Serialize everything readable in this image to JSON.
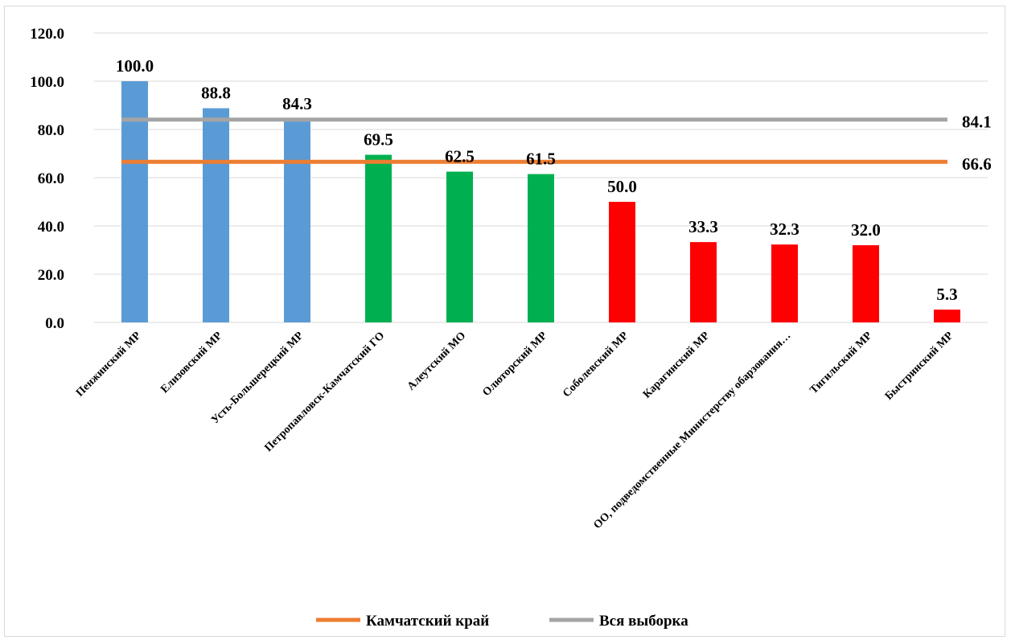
{
  "chart_data": {
    "type": "bar",
    "categories": [
      "Пенжинский МР",
      "Елизовский МР",
      "Усть-Большерецкий МР",
      "Петропавловск-Камчатский ГО",
      "Алеутский МО",
      "Олюторский МР",
      "Соболевский МР",
      "Карагинский МР",
      "ОО, подведомственные Министерству обарзования…",
      "Тигильский МР",
      "Быстринский МР"
    ],
    "values": [
      100.0,
      88.8,
      84.3,
      69.5,
      62.5,
      61.5,
      50.0,
      33.3,
      32.3,
      32.0,
      5.3
    ],
    "value_labels": [
      "100.0",
      "88.8",
      "84.3",
      "69.5",
      "62.5",
      "61.5",
      "50.0",
      "33.3",
      "32.3",
      "32.0",
      "5.3"
    ],
    "bar_colors": [
      "#5b9bd5",
      "#5b9bd5",
      "#5b9bd5",
      "#00b050",
      "#00b050",
      "#00b050",
      "#ff0000",
      "#ff0000",
      "#ff0000",
      "#ff0000",
      "#ff0000"
    ],
    "reference_lines": [
      {
        "name": "Камчатский край",
        "value": 66.6,
        "label": "66.6",
        "color": "#ed7d31"
      },
      {
        "name": "Вся выборка",
        "value": 84.1,
        "label": "84.1",
        "color": "#a5a5a5"
      }
    ],
    "ylim": [
      0,
      120
    ],
    "yticks": [
      "0.0",
      "20.0",
      "40.0",
      "60.0",
      "80.0",
      "100.0",
      "120.0"
    ],
    "grid": true,
    "legend_position": "bottom",
    "title": "",
    "xlabel": "",
    "ylabel": ""
  }
}
